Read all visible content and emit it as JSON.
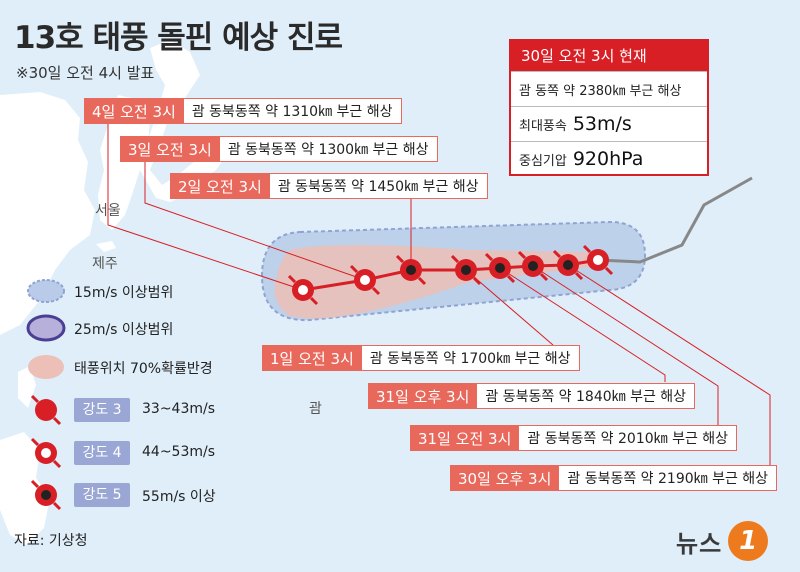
{
  "title": "13호 태풍 돌핀 예상 진로",
  "subtitle": "※30일 오전 4시 발표",
  "places": {
    "seoul": "서울",
    "jeju": "제주",
    "guam": "괌"
  },
  "current": {
    "header": "30일 오전 3시 현재",
    "location": "괌 동쪽 약 2380㎞ 부근 해상",
    "wind_label": "최대풍속",
    "wind_value": "53m/s",
    "pressure_label": "중심기압",
    "pressure_value": "920hPa"
  },
  "forecasts": [
    {
      "time": "4일 오전 3시",
      "location": "괌 동북동쪽 약 1310㎞ 부근 해상"
    },
    {
      "time": "3일 오전 3시",
      "location": "괌 동북동쪽 약 1300㎞ 부근 해상"
    },
    {
      "time": "2일 오전 3시",
      "location": "괌 동북동쪽 약 1450㎞ 부근 해상"
    },
    {
      "time": "1일 오전 3시",
      "location": "괌 동북동쪽 약 1700㎞ 부근 해상"
    },
    {
      "time": "31일 오후 3시",
      "location": "괌 동북동쪽 약 1840㎞ 부근 해상"
    },
    {
      "time": "31일 오전 3시",
      "location": "괌 동북동쪽 약 2010㎞ 부근 해상"
    },
    {
      "time": "30일 오후 3시",
      "location": "괌 동북동쪽 약 2190㎞ 부근 해상"
    }
  ],
  "legend": {
    "range15": "15m/s 이상범위",
    "range25": "25m/s 이상범위",
    "prob70": "태풍위치 70%확률반경",
    "intensity": [
      {
        "badge": "강도 3",
        "range": "33~43m/s"
      },
      {
        "badge": "강도 4",
        "range": "44~53m/s"
      },
      {
        "badge": "강도 5",
        "range": "55m/s 이상"
      }
    ]
  },
  "source": "자료: 기상청",
  "logo": {
    "text": "뉴스",
    "mark": "1"
  },
  "colors": {
    "sea": "#dfeef8",
    "land": "#ffffff",
    "accent": "#d81f26",
    "callout": "#e8685c",
    "range15": "#b9cbe8",
    "prob70": "#ecc0b6",
    "badge": "#9aa6d4"
  }
}
